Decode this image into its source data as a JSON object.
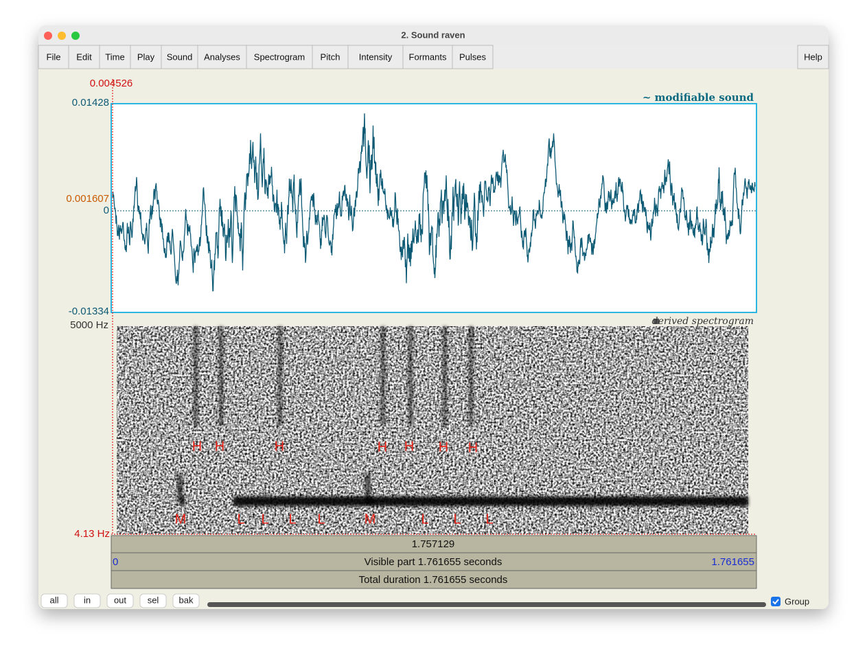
{
  "window": {
    "title": "2. Sound raven"
  },
  "menu": [
    "File",
    "Edit",
    "Time",
    "Play",
    "Sound",
    "Analyses",
    "Spectrogram",
    "Pitch",
    "Intensity",
    "Formants",
    "Pulses"
  ],
  "help": "Help",
  "sound": {
    "cursor_time": "0.004526",
    "max": "0.01428",
    "cursor_value": "0.001607",
    "zero": "0",
    "min": "-0.01334",
    "label": "~ modifiable sound"
  },
  "spectrogram": {
    "label": "derived spectrogram",
    "top": "5000 Hz",
    "bottom": "4.13 Hz",
    "annotations": [
      "H",
      "H",
      "H",
      "H",
      "H",
      "H",
      "H",
      "M",
      "L",
      "L",
      "L",
      "L",
      "M",
      "L",
      "L",
      "L"
    ]
  },
  "bars": {
    "cursor": "1.757129",
    "visible_start": "0",
    "visible": "Visible part 1.761655 seconds",
    "visible_end": "1.761655",
    "total": "Total duration 1.761655 seconds"
  },
  "buttons": [
    "all",
    "in",
    "out",
    "sel",
    "bak"
  ],
  "group": "Group"
}
